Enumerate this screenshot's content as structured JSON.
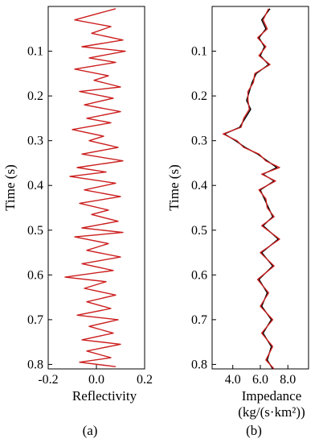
{
  "chart_data": [
    {
      "type": "line",
      "panel_label": "(a)",
      "xlabel": "Reflectivity",
      "ylabel": "Time (s)",
      "xlim": [
        -0.2,
        0.2
      ],
      "ylim": [
        0.0,
        0.81
      ],
      "y_inverted": true,
      "xticks": [
        "-0.2",
        "0.0",
        "0.2"
      ],
      "yticks": [
        "0.1",
        "0.2",
        "0.3",
        "0.4",
        "0.5",
        "0.6",
        "0.7",
        "0.8"
      ],
      "series": [
        {
          "color": "#cc1f1f",
          "orientation": "vertical",
          "points": [
            [
              0.08,
              0.005
            ],
            [
              -0.09,
              0.03
            ],
            [
              0.06,
              0.045
            ],
            [
              -0.02,
              0.06
            ],
            [
              0.11,
              0.075
            ],
            [
              -0.06,
              0.09
            ],
            [
              0.12,
              0.1
            ],
            [
              -0.03,
              0.115
            ],
            [
              0.08,
              0.125
            ],
            [
              -0.09,
              0.14
            ],
            [
              0.05,
              0.155
            ],
            [
              -0.01,
              0.165
            ],
            [
              0.1,
              0.18
            ],
            [
              -0.07,
              0.19
            ],
            [
              0.07,
              0.205
            ],
            [
              -0.05,
              0.22
            ],
            [
              0.1,
              0.235
            ],
            [
              -0.04,
              0.25
            ],
            [
              0.06,
              0.26
            ],
            [
              -0.1,
              0.275
            ],
            [
              0.03,
              0.29
            ],
            [
              -0.03,
              0.3
            ],
            [
              0.09,
              0.315
            ],
            [
              -0.06,
              0.33
            ],
            [
              0.11,
              0.345
            ],
            [
              -0.08,
              0.36
            ],
            [
              0.04,
              0.37
            ],
            [
              -0.11,
              0.38
            ],
            [
              0.08,
              0.395
            ],
            [
              -0.05,
              0.41
            ],
            [
              0.1,
              0.425
            ],
            [
              -0.07,
              0.44
            ],
            [
              0.05,
              0.455
            ],
            [
              -0.02,
              0.465
            ],
            [
              0.09,
              0.48
            ],
            [
              -0.06,
              0.495
            ],
            [
              0.11,
              0.505
            ],
            [
              -0.09,
              0.515
            ],
            [
              0.05,
              0.53
            ],
            [
              -0.04,
              0.545
            ],
            [
              0.1,
              0.56
            ],
            [
              -0.06,
              0.575
            ],
            [
              0.07,
              0.59
            ],
            [
              -0.13,
              0.605
            ],
            [
              0.04,
              0.615
            ],
            [
              -0.05,
              0.63
            ],
            [
              0.08,
              0.645
            ],
            [
              -0.04,
              0.66
            ],
            [
              0.06,
              0.675
            ],
            [
              -0.08,
              0.69
            ],
            [
              0.09,
              0.7
            ],
            [
              -0.03,
              0.715
            ],
            [
              0.07,
              0.73
            ],
            [
              -0.06,
              0.745
            ],
            [
              0.1,
              0.755
            ],
            [
              -0.04,
              0.77
            ],
            [
              0.06,
              0.785
            ],
            [
              -0.07,
              0.795
            ],
            [
              0.08,
              0.805
            ]
          ]
        }
      ]
    },
    {
      "type": "line",
      "panel_label": "(b)",
      "xlabel": "Impedance",
      "xlabel_units": "(kg/(s·km²))",
      "ylabel": "Time (s)",
      "xlim": [
        2.5,
        9.5
      ],
      "ylim": [
        0.0,
        0.81
      ],
      "y_inverted": true,
      "xticks": [
        "4.0",
        "6.0",
        "8.0"
      ],
      "yticks": [
        "0.1",
        "0.2",
        "0.3",
        "0.4",
        "0.5",
        "0.6",
        "0.7",
        "0.8"
      ],
      "series": [
        {
          "color": "#000000",
          "orientation": "vertical",
          "points": [
            [
              6.7,
              0.005
            ],
            [
              6.1,
              0.03
            ],
            [
              6.4,
              0.05
            ],
            [
              5.9,
              0.07
            ],
            [
              6.3,
              0.09
            ],
            [
              6.0,
              0.11
            ],
            [
              6.6,
              0.13
            ],
            [
              5.7,
              0.15
            ],
            [
              5.4,
              0.17
            ],
            [
              5.2,
              0.19
            ],
            [
              5.0,
              0.21
            ],
            [
              5.3,
              0.23
            ],
            [
              4.9,
              0.25
            ],
            [
              4.5,
              0.27
            ],
            [
              3.4,
              0.285
            ],
            [
              4.2,
              0.3
            ],
            [
              4.9,
              0.315
            ],
            [
              5.8,
              0.33
            ],
            [
              6.5,
              0.345
            ],
            [
              7.2,
              0.36
            ],
            [
              6.2,
              0.375
            ],
            [
              7.0,
              0.39
            ],
            [
              6.0,
              0.41
            ],
            [
              6.3,
              0.43
            ],
            [
              6.6,
              0.45
            ],
            [
              6.9,
              0.47
            ],
            [
              6.2,
              0.49
            ],
            [
              7.3,
              0.52
            ],
            [
              6.1,
              0.55
            ],
            [
              6.9,
              0.58
            ],
            [
              5.9,
              0.61
            ],
            [
              6.5,
              0.64
            ],
            [
              6.1,
              0.67
            ],
            [
              6.8,
              0.7
            ],
            [
              6.2,
              0.73
            ],
            [
              6.8,
              0.76
            ],
            [
              6.5,
              0.79
            ],
            [
              6.9,
              0.81
            ]
          ]
        },
        {
          "color": "#cc1f1f",
          "orientation": "vertical",
          "points": [
            [
              6.6,
              0.005
            ],
            [
              6.2,
              0.03
            ],
            [
              6.5,
              0.05
            ],
            [
              5.8,
              0.07
            ],
            [
              6.4,
              0.09
            ],
            [
              5.9,
              0.11
            ],
            [
              6.7,
              0.13
            ],
            [
              5.6,
              0.15
            ],
            [
              5.5,
              0.17
            ],
            [
              5.1,
              0.19
            ],
            [
              5.1,
              0.21
            ],
            [
              5.2,
              0.23
            ],
            [
              4.8,
              0.25
            ],
            [
              4.6,
              0.27
            ],
            [
              3.3,
              0.285
            ],
            [
              4.3,
              0.3
            ],
            [
              4.8,
              0.315
            ],
            [
              5.9,
              0.33
            ],
            [
              6.4,
              0.345
            ],
            [
              7.4,
              0.36
            ],
            [
              6.1,
              0.375
            ],
            [
              7.1,
              0.39
            ],
            [
              5.9,
              0.41
            ],
            [
              6.4,
              0.43
            ],
            [
              6.5,
              0.45
            ],
            [
              7.0,
              0.47
            ],
            [
              6.1,
              0.49
            ],
            [
              7.4,
              0.52
            ],
            [
              6.0,
              0.55
            ],
            [
              7.0,
              0.58
            ],
            [
              5.8,
              0.61
            ],
            [
              6.6,
              0.64
            ],
            [
              6.0,
              0.67
            ],
            [
              6.9,
              0.7
            ],
            [
              6.1,
              0.73
            ],
            [
              6.9,
              0.76
            ],
            [
              6.4,
              0.79
            ],
            [
              7.0,
              0.81
            ]
          ]
        }
      ]
    }
  ]
}
